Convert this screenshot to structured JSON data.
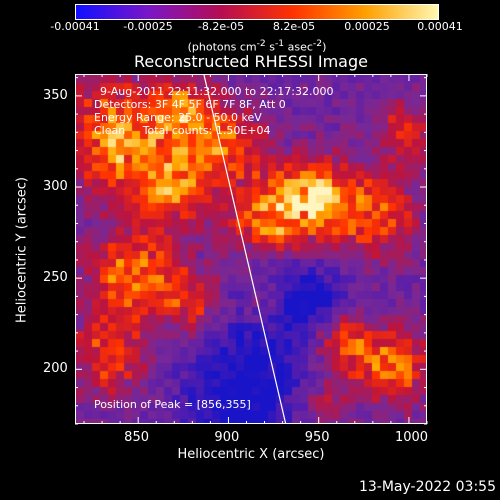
{
  "colorbar": {
    "ticks": [
      "-0.00041",
      "-0.00025",
      "-8.2e-05",
      "8.2e-05",
      "0.00025",
      "0.00041"
    ],
    "units_html": "(photons cm<sup>-2</sup> s<sup>-1</sup> asec<sup>-2</sup>)",
    "colors": [
      "#1010ff",
      "#7a16c7",
      "#b50d53",
      "#ff3300",
      "#ffa000",
      "#fff7b0"
    ]
  },
  "title": "Reconstructed RHESSI Image",
  "info": {
    "line1": "9-Aug-2011 22:11:32.000 to 22:17:32.000",
    "line2": "Detectors: 3F 4F 5F 6F 7F 8F, Att 0",
    "line3": "Energy Range: 25.0 - 50.0 keV",
    "line4": "Clean     Total counts: 1.50E+04",
    "peak": "Position of Peak = [856,355]"
  },
  "axes": {
    "xlabel": "Heliocentric X (arcsec)",
    "ylabel": "Heliocentric Y (arcsec)",
    "xticks": [
      "850",
      "900",
      "950",
      "1000"
    ],
    "yticks": [
      "200",
      "250",
      "300",
      "350"
    ],
    "x_tick_values": [
      850,
      900,
      950,
      1000
    ],
    "y_tick_values": [
      200,
      250,
      300,
      350
    ],
    "xlim": [
      815,
      1010
    ],
    "ylim": [
      170,
      362
    ]
  },
  "footer_date": "13-May-2022 03:55"
}
